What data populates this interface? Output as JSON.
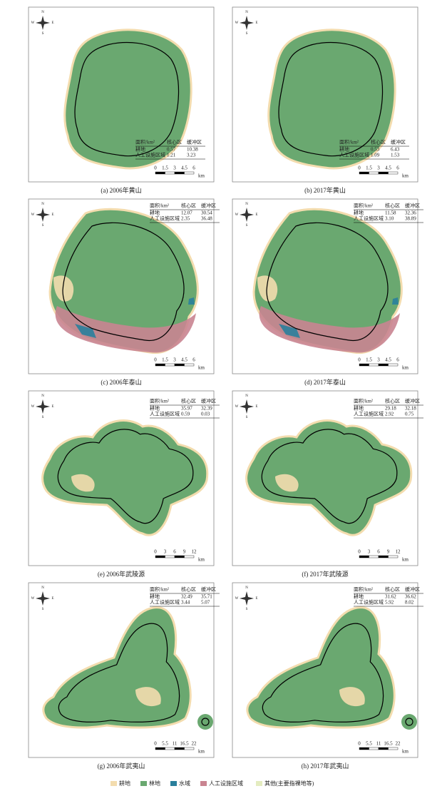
{
  "compass": {
    "n": "N",
    "s": "S",
    "w": "W",
    "e": "E"
  },
  "panels": [
    {
      "caption": "(a) 2006年黄山",
      "table": {
        "header": [
          "面积/km²",
          "核心区",
          "缓冲区"
        ],
        "rows": [
          [
            "耕地",
            "0.57",
            "10.38"
          ],
          [
            "人工设施区域",
            "1.21",
            "3.23"
          ]
        ]
      },
      "scale": {
        "ticks": [
          "0",
          "1.5",
          "3",
          "4.5",
          "6"
        ],
        "unit": "km"
      }
    },
    {
      "caption": "(b) 2017年黄山",
      "table": {
        "header": [
          "面积/km²",
          "核心区",
          "缓冲区"
        ],
        "rows": [
          [
            "耕地",
            "0.53",
            "6.43"
          ],
          [
            "人工设施区域",
            "1.09",
            "1.53"
          ]
        ]
      },
      "scale": {
        "ticks": [
          "0",
          "1.5",
          "3",
          "4.5",
          "6"
        ],
        "unit": "km"
      }
    },
    {
      "caption": "(c) 2006年泰山",
      "table": {
        "header": [
          "面积/km²",
          "核心区",
          "缓冲区"
        ],
        "rows": [
          [
            "耕地",
            "12.07",
            "30.54"
          ],
          [
            "人工设施区域",
            "2.35",
            "36.48"
          ]
        ]
      },
      "scale": {
        "ticks": [
          "0",
          "1.5",
          "3",
          "4.5",
          "6"
        ],
        "unit": "km"
      }
    },
    {
      "caption": "(d) 2017年泰山",
      "table": {
        "header": [
          "面积/km²",
          "核心区",
          "缓冲区"
        ],
        "rows": [
          [
            "耕地",
            "11.58",
            "32.36"
          ],
          [
            "人工设施区域",
            "3.10",
            "38.89"
          ]
        ]
      },
      "scale": {
        "ticks": [
          "0",
          "1.5",
          "3",
          "4.5",
          "6"
        ],
        "unit": "km"
      }
    },
    {
      "caption": "(e) 2006年武陵源",
      "table": {
        "header": [
          "面积/km²",
          "核心区",
          "缓冲区"
        ],
        "rows": [
          [
            "耕地",
            "35.97",
            "32.39"
          ],
          [
            "人工设施区域",
            "0.59",
            "0.03"
          ]
        ]
      },
      "scale": {
        "ticks": [
          "0",
          "3",
          "6",
          "9",
          "12"
        ],
        "unit": "km"
      }
    },
    {
      "caption": "(f) 2017年武陵源",
      "table": {
        "header": [
          "面积/km²",
          "核心区",
          "缓冲区"
        ],
        "rows": [
          [
            "耕地",
            "29.18",
            "32.18"
          ],
          [
            "人工设施区域",
            "2.92",
            "0.75"
          ]
        ]
      },
      "scale": {
        "ticks": [
          "0",
          "3",
          "6",
          "9",
          "12"
        ],
        "unit": "km"
      }
    },
    {
      "caption": "(g) 2006年武夷山",
      "table": {
        "header": [
          "面积/km²",
          "核心区",
          "缓冲区"
        ],
        "rows": [
          [
            "耕地",
            "32.49",
            "35.71"
          ],
          [
            "人工设施区域",
            "3.44",
            "5.07"
          ]
        ]
      },
      "scale": {
        "ticks": [
          "0",
          "5.5",
          "11",
          "16.5",
          "22"
        ],
        "unit": "km"
      }
    },
    {
      "caption": "(h) 2017年武夷山",
      "table": {
        "header": [
          "面积/km²",
          "核心区",
          "缓冲区"
        ],
        "rows": [
          [
            "耕地",
            "31.62",
            "36.62"
          ],
          [
            "人工设施区域",
            "5.92",
            "8.02"
          ]
        ]
      },
      "scale": {
        "ticks": [
          "0",
          "5.5",
          "11",
          "16.5",
          "22"
        ],
        "unit": "km"
      }
    }
  ],
  "legend": [
    {
      "label": "耕地",
      "color": "#f3dcae"
    },
    {
      "label": "林地",
      "color": "#6aa870"
    },
    {
      "label": "水域",
      "color": "#2a7f9c"
    },
    {
      "label": "人工设施区域",
      "color": "#c98491"
    },
    {
      "label": "其他(主要指裸地等)",
      "color": "#e4ecc0"
    }
  ]
}
